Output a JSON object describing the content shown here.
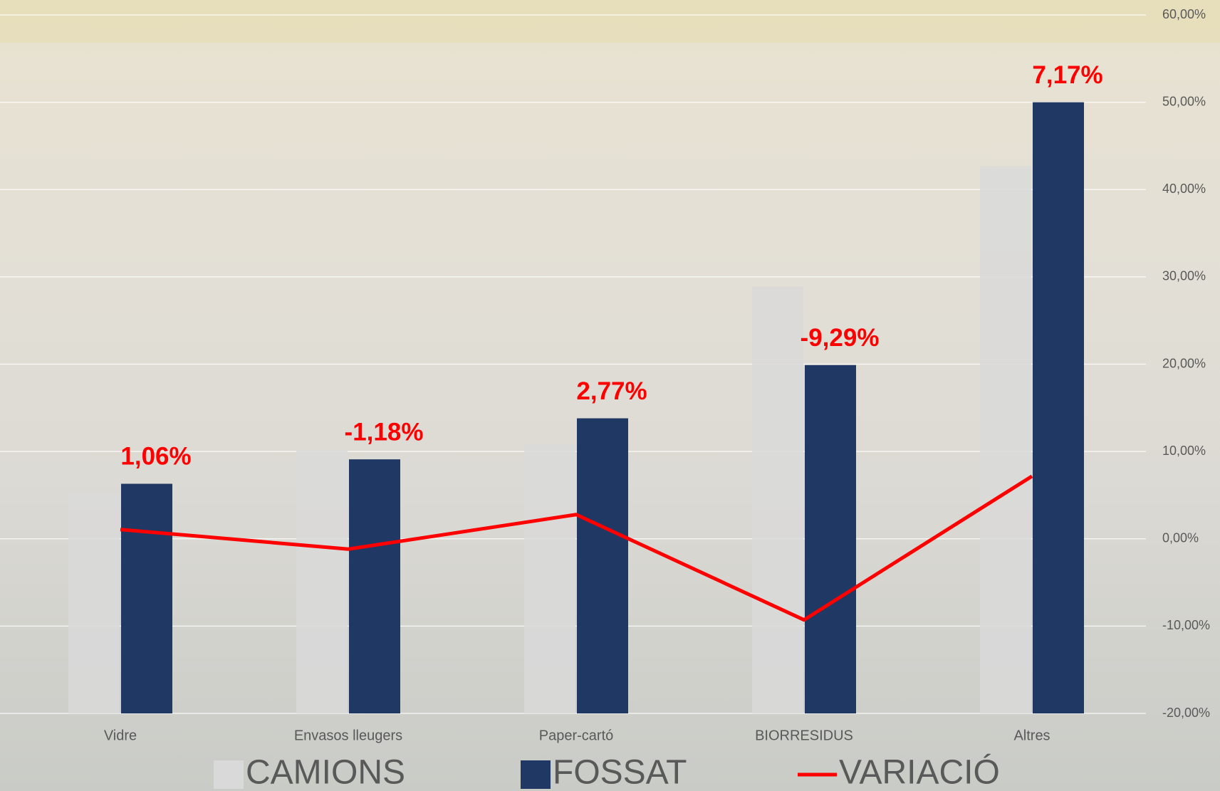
{
  "chart_data": {
    "type": "bar_line",
    "categories": [
      "Vidre",
      "Envasos lleugers",
      "Paper-cartó",
      "BIORRESIDUS",
      "Altres"
    ],
    "series": [
      {
        "name": "CAMIONS",
        "type": "bar",
        "color": "#d9d9d9",
        "values": [
          5.1,
          10.1,
          10.8,
          28.9,
          42.7
        ]
      },
      {
        "name": "FOSSAT",
        "type": "bar",
        "color": "#1f3864",
        "values": [
          6.3,
          9.1,
          13.8,
          19.9,
          50.0
        ]
      },
      {
        "name": "VARIACIÓ",
        "type": "line",
        "color": "#ff0000",
        "values": [
          1.06,
          -1.18,
          2.77,
          -9.29,
          7.17
        ],
        "value_labels": [
          "1,06%",
          "-1,18%",
          "2,77%",
          "-9,29%",
          "7,17%"
        ]
      }
    ],
    "ylim": [
      -20,
      60
    ],
    "yticks": [
      {
        "value": -20,
        "label": "-20,00%"
      },
      {
        "value": -10,
        "label": "-10,00%"
      },
      {
        "value": 0,
        "label": "0,00%"
      },
      {
        "value": 10,
        "label": "10,00%"
      },
      {
        "value": 20,
        "label": "20,00%"
      },
      {
        "value": 30,
        "label": "30,00%"
      },
      {
        "value": 40,
        "label": "40,00%"
      },
      {
        "value": 50,
        "label": "50,00%"
      },
      {
        "value": 60,
        "label": "60,00%"
      }
    ],
    "grid": true,
    "legend": "bottom"
  }
}
